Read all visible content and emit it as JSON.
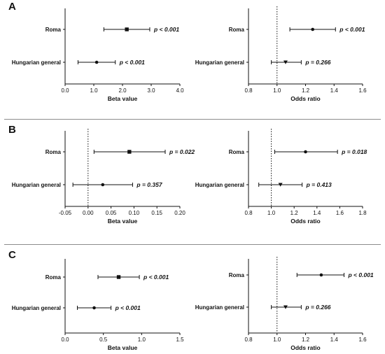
{
  "panels": [
    {
      "label": "A"
    },
    {
      "label": "B"
    },
    {
      "label": "C"
    }
  ],
  "colors": {
    "ink": "#111111",
    "divider": "#8c8c8c",
    "background": "#ffffff"
  },
  "chart_data": [
    {
      "panel": "A",
      "side": "left",
      "type": "forest",
      "xlabel": "Beta value",
      "xlim": [
        0,
        4
      ],
      "ticks": [
        0,
        1,
        2,
        3,
        4
      ],
      "tick_labels": [
        "0.0",
        "1.0",
        "2.0",
        "3.0",
        "4.0"
      ],
      "reference_line": null,
      "rows": [
        {
          "label": "Roma",
          "estimate": 2.15,
          "ci": [
            1.35,
            2.95
          ],
          "p_text": "p < 0.001",
          "marker": "square"
        },
        {
          "label": "Hungarian general",
          "estimate": 1.1,
          "ci": [
            0.45,
            1.75
          ],
          "p_text": "p < 0.001",
          "marker": "circle"
        }
      ]
    },
    {
      "panel": "A",
      "side": "right",
      "type": "forest",
      "xlabel": "Odds ratio",
      "xlim": [
        0.8,
        1.6
      ],
      "ticks": [
        0.8,
        1.0,
        1.2,
        1.4,
        1.6
      ],
      "tick_labels": [
        "0.8",
        "1.0",
        "1.2",
        "1.4",
        "1.6"
      ],
      "reference_line": 1.0,
      "rows": [
        {
          "label": "Roma",
          "estimate": 1.25,
          "ci": [
            1.09,
            1.41
          ],
          "p_text": "p < 0.001",
          "marker": "circle"
        },
        {
          "label": "Hungarian general",
          "estimate": 1.06,
          "ci": [
            0.96,
            1.17
          ],
          "p_text": "p = 0.266",
          "marker": "triangle"
        }
      ]
    },
    {
      "panel": "B",
      "side": "left",
      "type": "forest",
      "xlabel": "Beta value",
      "xlim": [
        -0.05,
        0.2
      ],
      "ticks": [
        -0.05,
        0,
        0.05,
        0.1,
        0.15,
        0.2
      ],
      "tick_labels": [
        "-0.05",
        "0.00",
        "0.05",
        "0.10",
        "0.15",
        "0.20"
      ],
      "reference_line": 0,
      "rows": [
        {
          "label": "Roma",
          "estimate": 0.09,
          "ci": [
            0.013,
            0.168
          ],
          "p_text": "p = 0.022",
          "marker": "square"
        },
        {
          "label": "Hungarian general",
          "estimate": 0.032,
          "ci": [
            -0.033,
            0.097
          ],
          "p_text": "p = 0.357",
          "marker": "circle"
        }
      ]
    },
    {
      "panel": "B",
      "side": "right",
      "type": "forest",
      "xlabel": "Odds ratio",
      "xlim": [
        0.8,
        1.8
      ],
      "ticks": [
        0.8,
        1.0,
        1.2,
        1.4,
        1.6,
        1.8
      ],
      "tick_labels": [
        "0.8",
        "1.0",
        "1.2",
        "1.4",
        "1.6",
        "1.8"
      ],
      "reference_line": 1.0,
      "rows": [
        {
          "label": "Roma",
          "estimate": 1.3,
          "ci": [
            1.03,
            1.58
          ],
          "p_text": "p = 0.018",
          "marker": "circle"
        },
        {
          "label": "Hungarian general",
          "estimate": 1.08,
          "ci": [
            0.89,
            1.27
          ],
          "p_text": "p = 0.413",
          "marker": "triangle"
        }
      ]
    },
    {
      "panel": "C",
      "side": "left",
      "type": "forest",
      "xlabel": "Beta value",
      "xlim": [
        0,
        1.5
      ],
      "ticks": [
        0,
        0.5,
        1,
        1.5
      ],
      "tick_labels": [
        "0.0",
        "0.5",
        "1.0",
        "1.5"
      ],
      "reference_line": null,
      "rows": [
        {
          "label": "Roma",
          "estimate": 0.7,
          "ci": [
            0.43,
            0.97
          ],
          "p_text": "p < 0.001",
          "marker": "square"
        },
        {
          "label": "Hungarian general",
          "estimate": 0.38,
          "ci": [
            0.16,
            0.6
          ],
          "p_text": "p < 0.001",
          "marker": "circle"
        }
      ]
    },
    {
      "panel": "C",
      "side": "right",
      "type": "forest",
      "xlabel": "Odds ratio",
      "xlim": [
        0.8,
        1.6
      ],
      "ticks": [
        0.8,
        1.0,
        1.2,
        1.4,
        1.6
      ],
      "tick_labels": [
        "0.8",
        "1.0",
        "1.2",
        "1.4",
        "1.6"
      ],
      "reference_line": 1.0,
      "rows": [
        {
          "label": "Roma",
          "estimate": 1.31,
          "ci": [
            1.14,
            1.47
          ],
          "p_text": "p < 0.001",
          "marker": "circle"
        },
        {
          "label": "Hungarian general",
          "estimate": 1.06,
          "ci": [
            0.96,
            1.17
          ],
          "p_text": "p = 0.266",
          "marker": "triangle"
        }
      ]
    }
  ]
}
